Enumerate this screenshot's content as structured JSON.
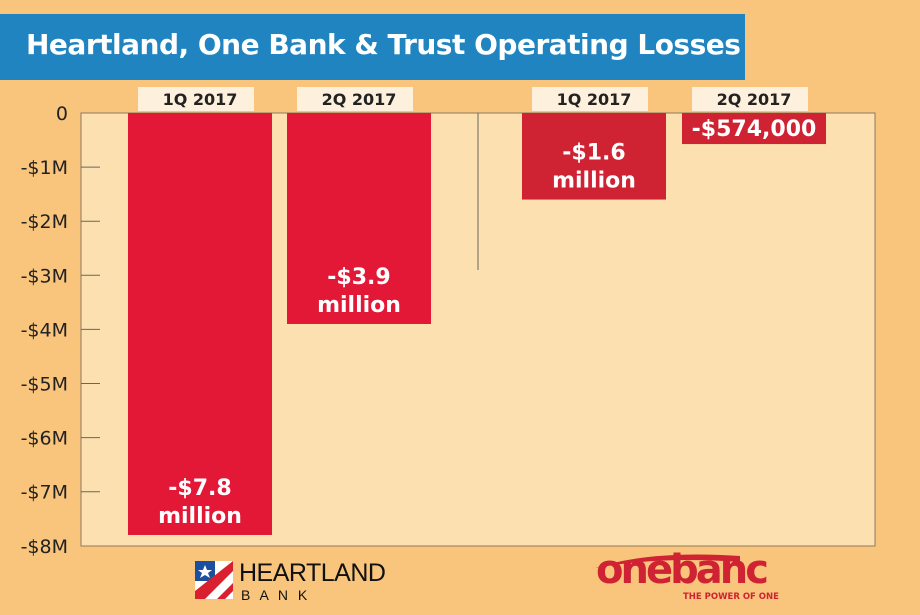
{
  "title": "Heartland, One Bank & Trust Operating Losses",
  "chart_data": {
    "type": "bar",
    "title": "Heartland, One Bank & Trust Operating Losses",
    "ylim": [
      -8,
      0
    ],
    "y_unit": "million USD",
    "yticks": [
      "0",
      "-$1M",
      "-$2M",
      "-$3M",
      "-$4M",
      "-$5M",
      "-$6M",
      "-$7M",
      "-$8M"
    ],
    "groups": [
      {
        "name": "Heartland Bank",
        "bars": [
          {
            "category": "1Q 2017",
            "value": -7.8,
            "label": [
              "-$7.8",
              "million"
            ],
            "color": "#e31837"
          },
          {
            "category": "2Q 2017",
            "value": -3.9,
            "label": [
              "-$3.9",
              "million"
            ],
            "color": "#e31837"
          }
        ]
      },
      {
        "name": "One Bank & Trust",
        "bars": [
          {
            "category": "1Q 2017",
            "value": -1.6,
            "label": [
              "-$1.6",
              "million"
            ],
            "color": "#cf2233"
          },
          {
            "category": "2Q 2017",
            "value": -0.574,
            "label": [
              "-$574,000"
            ],
            "color": "#cf2233"
          }
        ]
      }
    ],
    "grid": false
  },
  "logos": {
    "heartland": {
      "line1": "HEARTLAND",
      "line2": "B A N K"
    },
    "onebanc": {
      "name": "onebanc",
      "tagline": "THE POWER OF ONE"
    }
  }
}
